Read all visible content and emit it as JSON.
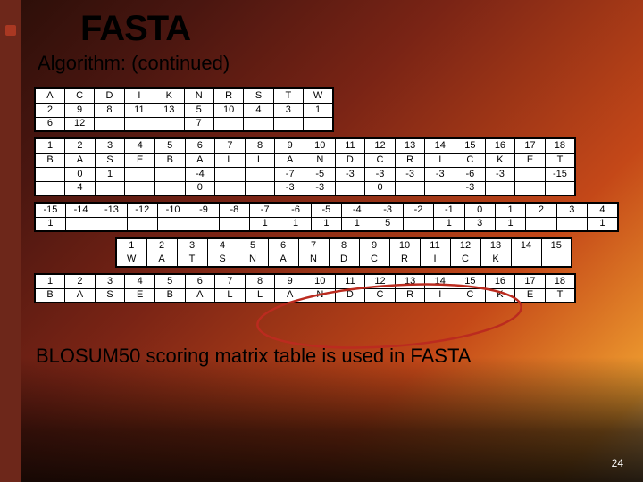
{
  "title": "FASTA",
  "subtitle": "Algorithm: (continued)",
  "caption": "BLOSUM50 scoring matrix table is used in FASTA",
  "page_number": "24",
  "colors": {
    "slide_bar": "#6d271a",
    "circle_stroke": "#bb2b1f"
  },
  "table1": {
    "rows": [
      [
        "A",
        "C",
        "D",
        "I",
        "K",
        "N",
        "R",
        "S",
        "T",
        "W"
      ],
      [
        "2",
        "9",
        "8",
        "11",
        "13",
        "5",
        "10",
        "4",
        "3",
        "1"
      ],
      [
        "6",
        "12",
        "",
        "",
        "",
        "7",
        "",
        "",
        "",
        ""
      ]
    ]
  },
  "table2": {
    "rows": [
      [
        "1",
        "2",
        "3",
        "4",
        "5",
        "6",
        "7",
        "8",
        "9",
        "10",
        "11",
        "12",
        "13",
        "14",
        "15",
        "16",
        "17",
        "18"
      ],
      [
        "B",
        "A",
        "S",
        "E",
        "B",
        "A",
        "L",
        "L",
        "A",
        "N",
        "D",
        "C",
        "R",
        "I",
        "C",
        "K",
        "E",
        "T"
      ],
      [
        "",
        "0",
        "1",
        "",
        "",
        "-4",
        "",
        "",
        "-7",
        "-5",
        "-3",
        "-3",
        "-3",
        "-3",
        "-6",
        "-3",
        "",
        "-15"
      ],
      [
        "",
        "4",
        "",
        "",
        "",
        "0",
        "",
        "",
        "-3",
        "-3",
        "",
        "0",
        "",
        "",
        "-3",
        "",
        "",
        ""
      ]
    ]
  },
  "table3": {
    "rows": [
      [
        "-15",
        "-14",
        "-13",
        "-12",
        "-10",
        "-9",
        "-8",
        "-7",
        "-6",
        "-5",
        "-4",
        "-3",
        "-2",
        "-1",
        "0",
        "1",
        "2",
        "3",
        "4"
      ],
      [
        "1",
        "",
        "",
        "",
        "",
        "",
        "",
        "1",
        "1",
        "1",
        "1",
        "5",
        "",
        "1",
        "3",
        "1",
        "",
        "",
        "1"
      ]
    ]
  },
  "table4": {
    "rows": [
      [
        "1",
        "2",
        "3",
        "4",
        "5",
        "6",
        "7",
        "8",
        "9",
        "10",
        "11",
        "12",
        "13",
        "14",
        "15"
      ],
      [
        "W",
        "A",
        "T",
        "S",
        "N",
        "A",
        "N",
        "D",
        "C",
        "R",
        "I",
        "C",
        "K",
        "",
        ""
      ]
    ]
  },
  "table5": {
    "rows": [
      [
        "1",
        "2",
        "3",
        "4",
        "5",
        "6",
        "7",
        "8",
        "9",
        "10",
        "11",
        "12",
        "13",
        "14",
        "15",
        "16",
        "17",
        "18"
      ],
      [
        "B",
        "A",
        "S",
        "E",
        "B",
        "A",
        "L",
        "L",
        "A",
        "N",
        "D",
        "C",
        "R",
        "I",
        "C",
        "K",
        "E",
        "T"
      ]
    ]
  }
}
